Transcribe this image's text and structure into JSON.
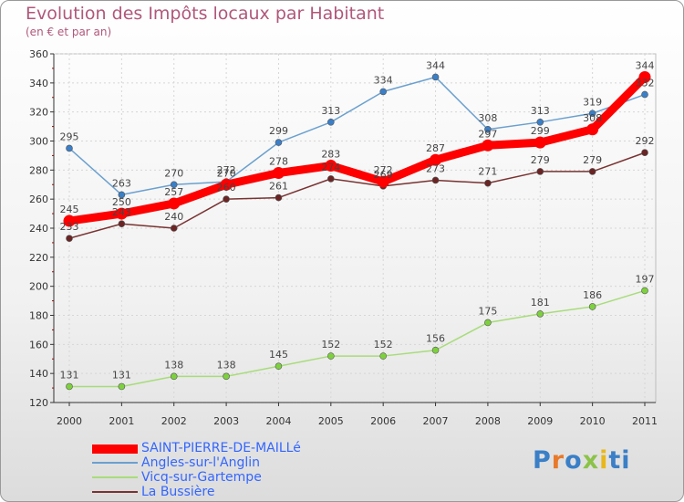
{
  "chart_data": {
    "type": "line",
    "title": "Evolution des Impôts locaux par Habitant",
    "subtitle": "(en € et par an)",
    "x": [
      2000,
      2001,
      2002,
      2003,
      2004,
      2005,
      2006,
      2007,
      2008,
      2009,
      2010,
      2011
    ],
    "ylim": [
      120,
      360
    ],
    "yticks": [
      120,
      140,
      160,
      180,
      200,
      220,
      240,
      260,
      280,
      300,
      320,
      340,
      360
    ],
    "grid": true,
    "legend_position": "bottom-left",
    "series": [
      {
        "name": "SAINT-PIERRE-DE-MAILLé",
        "color": "#ff0000",
        "marker_color": "#ff0000",
        "values": [
          245,
          250,
          257,
          270,
          278,
          283,
          272,
          287,
          297,
          299,
          308,
          344
        ]
      },
      {
        "name": "Angles-sur-l'Anglin",
        "color": "#6aa0cf",
        "marker_color": "#3a7fc7",
        "values": [
          295,
          263,
          270,
          272,
          299,
          313,
          334,
          344,
          308,
          313,
          319,
          332
        ]
      },
      {
        "name": "Vicq-sur-Gartempe",
        "color": "#a8dc7a",
        "marker_color": "#7dd13d",
        "values": [
          131,
          131,
          138,
          138,
          145,
          152,
          152,
          156,
          175,
          181,
          186,
          197
        ]
      },
      {
        "name": "La Bussière",
        "color": "#7a3232",
        "marker_color": "#6b2424",
        "values": [
          233,
          243,
          240,
          260,
          261,
          274,
          269,
          273,
          271,
          279,
          279,
          292
        ]
      }
    ]
  },
  "brand": {
    "text": "Proxiti",
    "letter_colors": [
      "#3a7fc7",
      "#e8792a",
      "#3a7fc7",
      "#8bc34a",
      "#e8b81a",
      "#3a7fc7",
      "#3a7fc7"
    ]
  }
}
